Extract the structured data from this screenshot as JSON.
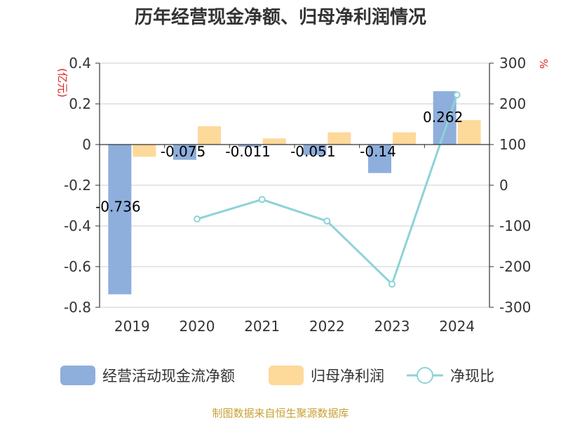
{
  "chart_data": {
    "type": "bar+line",
    "title": "历年经营现金净额、归母净利润情况",
    "categories": [
      "2019",
      "2020",
      "2021",
      "2022",
      "2023",
      "2024"
    ],
    "left_axis": {
      "unit": "(亿元)",
      "ylim": [
        -0.8,
        0.4
      ],
      "ticks": [
        "0.4",
        "0.2",
        "0",
        "-0.2",
        "-0.4",
        "-0.6",
        "-0.8"
      ]
    },
    "right_axis": {
      "unit": "%",
      "ylim": [
        -300,
        300
      ],
      "ticks": [
        "300",
        "200",
        "100",
        "0",
        "-100",
        "-200",
        "-300"
      ]
    },
    "series": [
      {
        "name": "经营活动现金流净额",
        "kind": "bar",
        "axis": "left",
        "color": "#8eaedc",
        "values": [
          -0.736,
          -0.075,
          -0.011,
          -0.051,
          -0.14,
          0.262
        ],
        "labels": [
          "-0.736",
          "-0.075",
          "-0.011",
          "-0.051",
          "-0.14",
          "0.262"
        ]
      },
      {
        "name": "归母净利润",
        "kind": "bar",
        "axis": "left",
        "color": "#fdd99a",
        "values": [
          -0.06,
          0.09,
          0.03,
          0.06,
          0.06,
          0.12
        ]
      },
      {
        "name": "净现比",
        "kind": "line",
        "axis": "right",
        "color": "#8dd3d6",
        "values": [
          null,
          -83,
          -35,
          -88,
          -243,
          222
        ]
      }
    ],
    "legend": [
      "经营活动现金流净额",
      "归母净利润",
      "净现比"
    ],
    "source": "制图数据来自恒生聚源数据库"
  }
}
